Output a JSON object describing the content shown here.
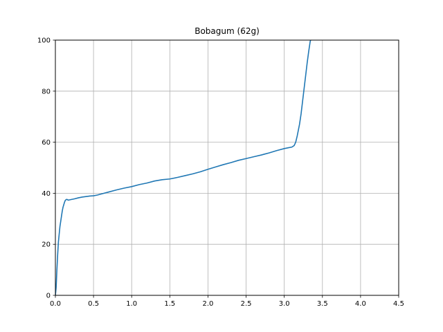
{
  "chart_data": {
    "type": "line",
    "title": "Bobagum (62g)",
    "xlabel": "",
    "ylabel": "",
    "xlim": [
      0,
      4.5
    ],
    "ylim": [
      0,
      100
    ],
    "xticks": [
      0.0,
      0.5,
      1.0,
      1.5,
      2.0,
      2.5,
      3.0,
      3.5,
      4.0,
      4.5
    ],
    "yticks": [
      0,
      20,
      40,
      60,
      80,
      100
    ],
    "xtick_labels": [
      "0.0",
      "0.5",
      "1.0",
      "1.5",
      "2.0",
      "2.5",
      "3.0",
      "3.5",
      "4.0",
      "4.5"
    ],
    "ytick_labels": [
      "0",
      "20",
      "40",
      "60",
      "80",
      "100"
    ],
    "grid": true,
    "line_color": "#1f77b4",
    "series": [
      {
        "x": [
          0.0,
          0.01,
          0.02,
          0.03,
          0.04,
          0.05,
          0.06,
          0.07,
          0.08,
          0.09,
          0.1,
          0.11,
          0.12,
          0.13,
          0.14,
          0.15,
          0.17,
          0.2,
          0.25,
          0.3,
          0.35,
          0.4,
          0.45,
          0.5,
          0.55,
          0.6,
          0.7,
          0.8,
          0.9,
          1.0,
          1.1,
          1.2,
          1.3,
          1.4,
          1.5,
          1.6,
          1.7,
          1.8,
          1.9,
          2.0,
          2.1,
          2.2,
          2.3,
          2.4,
          2.5,
          2.6,
          2.7,
          2.8,
          2.9,
          3.0,
          3.05,
          3.1,
          3.13,
          3.15,
          3.17,
          3.2,
          3.22,
          3.24,
          3.26,
          3.28,
          3.3,
          3.32,
          3.34,
          3.36
        ],
        "y": [
          0,
          3,
          10,
          16,
          21,
          24,
          27,
          29,
          31,
          33,
          34.5,
          35.5,
          36.5,
          37.2,
          37.5,
          37.6,
          37.3,
          37.5,
          37.8,
          38.2,
          38.5,
          38.7,
          38.9,
          39.0,
          39.3,
          39.7,
          40.5,
          41.3,
          42.0,
          42.6,
          43.4,
          44.0,
          44.8,
          45.3,
          45.6,
          46.2,
          46.9,
          47.6,
          48.4,
          49.4,
          50.3,
          51.2,
          52.0,
          52.9,
          53.6,
          54.3,
          55.0,
          55.8,
          56.7,
          57.5,
          57.8,
          58.1,
          58.7,
          60.0,
          62.5,
          67.0,
          71.0,
          76.0,
          81.0,
          86.0,
          91.0,
          95.5,
          99.5,
          101.0
        ]
      }
    ]
  }
}
